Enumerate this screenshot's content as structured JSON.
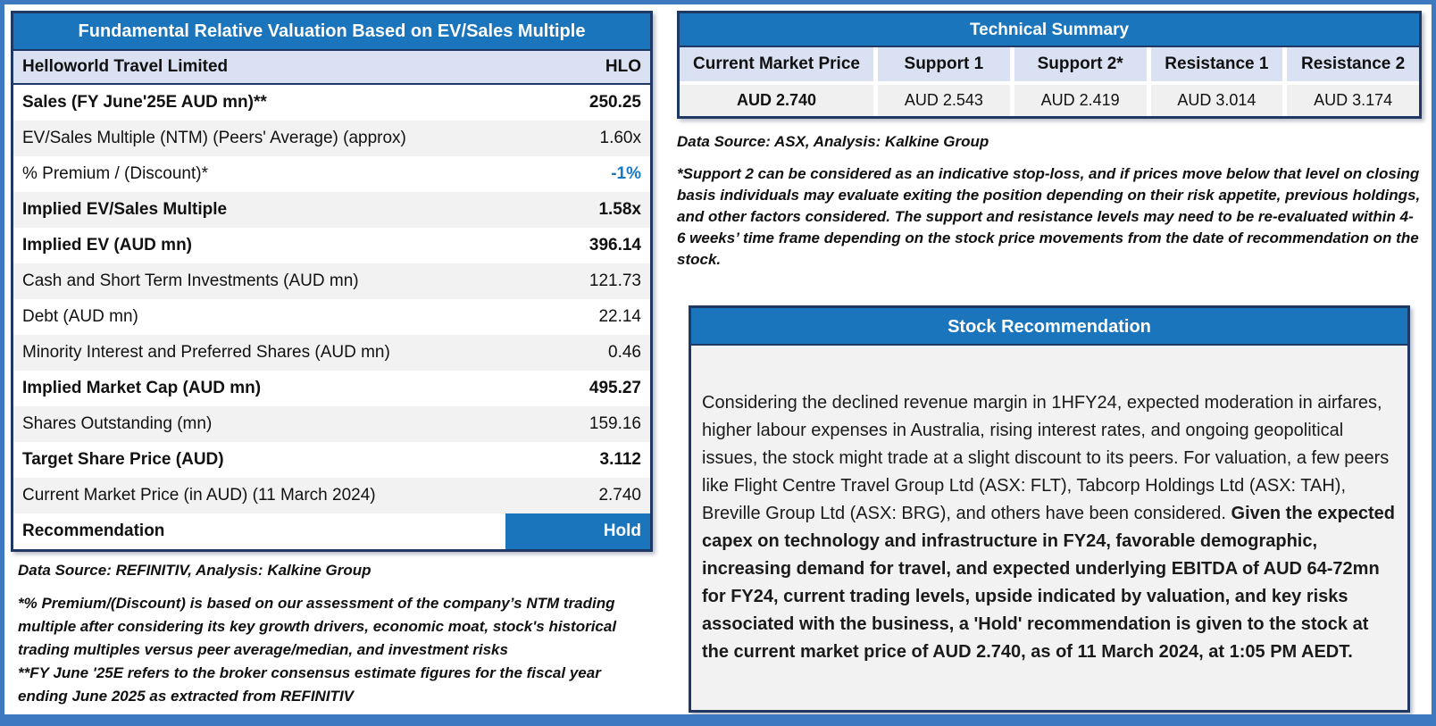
{
  "colors": {
    "header_blue": "#1B75BD",
    "navy_border": "#1F3864",
    "frame_blue": "#3D79C0",
    "company_row_blue": "#D9E1F2",
    "stripe_gray": "#F2F2F2",
    "accent_value_blue": "#1779C4"
  },
  "left_table": {
    "title": "Fundamental Relative Valuation Based on EV/Sales Multiple",
    "company": {
      "label": "Helloworld Travel Limited",
      "ticker": "HLO"
    },
    "rows": [
      {
        "label": "Sales (FY June'25E AUD mn)**",
        "value": "250.25"
      },
      {
        "label": "EV/Sales Multiple (NTM)  (Peers' Average) (approx)",
        "value": "1.60x"
      },
      {
        "label": "% Premium / (Discount)*",
        "value": "-1%"
      },
      {
        "label": "Implied EV/Sales Multiple",
        "value": "1.58x"
      },
      {
        "label": "Implied EV (AUD mn)",
        "value": "396.14"
      },
      {
        "label": "Cash and Short Term Investments (AUD mn)",
        "value": "121.73"
      },
      {
        "label": "Debt (AUD mn)",
        "value": "22.14"
      },
      {
        "label": "Minority Interest and Preferred Shares (AUD mn)",
        "value": "0.46"
      },
      {
        "label": "Implied Market Cap (AUD mn)",
        "value": "495.27"
      },
      {
        "label": "Shares Outstanding (mn)",
        "value": "159.16"
      },
      {
        "label": "Target Share Price (AUD)",
        "value": "3.112"
      },
      {
        "label": "Current Market Price (in AUD) (11 March 2024)",
        "value": "2.740"
      },
      {
        "label": "Recommendation",
        "value": "Hold"
      }
    ],
    "source_note": "Data Source: REFINITIV, Analysis: Kalkine Group",
    "footnote_premium": "*% Premium/(Discount) is based on our assessment of the company’s NTM trading multiple after considering its key growth drivers, economic moat, stock's historical trading multiples versus peer average/median, and investment risks",
    "footnote_fy": "**FY June '25E refers to the broker consensus estimate figures for the fiscal year ending June 2025  as extracted from REFINITIV"
  },
  "technical_summary": {
    "title": "Technical Summary",
    "columns": [
      "Current Market Price",
      "Support 1",
      "Support 2*",
      "Resistance 1",
      "Resistance 2"
    ],
    "values": [
      "AUD 2.740",
      "AUD 2.543",
      "AUD 2.419",
      "AUD 3.014",
      "AUD 3.174"
    ],
    "source_note": "Data Source: ASX, Analysis: Kalkine Group",
    "support_note": "*Support 2 can be considered as an indicative stop-loss, and if prices move below that level on closing basis individuals may evaluate exiting the position depending on their risk appetite, previous holdings, and other factors considered. The support and resistance levels may need to be re-evaluated within 4-6 weeks’ time frame depending on the stock price movements from the date of recommendation on the stock."
  },
  "stock_recommendation": {
    "title": "Stock Recommendation",
    "body_regular": "Considering the declined revenue margin in 1HFY24, expected moderation in airfares, higher labour expenses in Australia, rising interest rates, and ongoing geopolitical issues, the stock might trade at a slight discount to its peers. For valuation, a few peers like Flight Centre Travel Group Ltd (ASX: FLT), Tabcorp Holdings Ltd (ASX: TAH), Breville Group Ltd (ASX: BRG), and others have been considered. ",
    "body_bold": "Given the expected capex on technology and infrastructure in FY24, favorable demographic, increasing demand for travel, and expected underlying EBITDA of AUD 64-72mn for FY24, current trading levels, upside indicated by valuation, and key risks associated with the business, a 'Hold' recommendation is given to the stock at the current market price of AUD 2.740, as of 11 March 2024, at 1:05 PM AEDT."
  }
}
